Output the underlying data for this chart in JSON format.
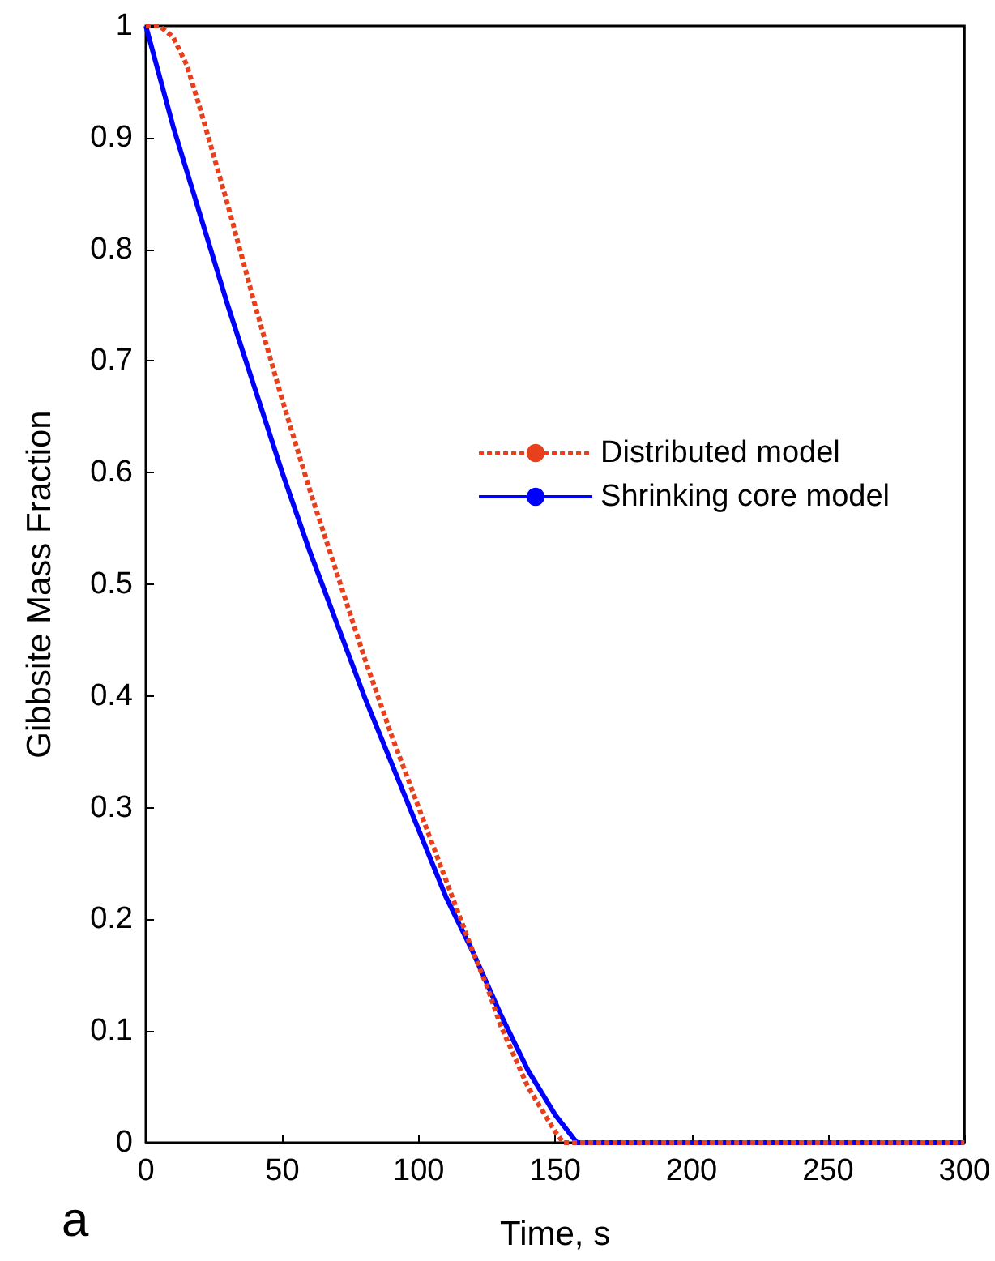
{
  "chart_data": {
    "type": "line",
    "xlabel": "Time, s",
    "ylabel": "Gibbsite Mass Fraction",
    "annotations": [
      "a"
    ],
    "xlim": [
      0,
      300
    ],
    "xticks": [
      0,
      50,
      100,
      150,
      200,
      250,
      300
    ],
    "ylim": [
      0,
      1
    ],
    "yticks": [
      0,
      0.1,
      0.2,
      0.3,
      0.4,
      0.5,
      0.6,
      0.7,
      0.8,
      0.9,
      1
    ],
    "grid": false,
    "legend": "right",
    "marker": "none",
    "series": [
      {
        "name": "Distributed model",
        "color": "#e8401c",
        "line_style": "dotted",
        "x": [
          0,
          5,
          10,
          15,
          20,
          30,
          40,
          50,
          60,
          70,
          80,
          90,
          100,
          110,
          120,
          125,
          130,
          140,
          150,
          153,
          200,
          250,
          300
        ],
        "values": [
          1,
          1,
          0.99,
          0.965,
          0.925,
          0.84,
          0.75,
          0.665,
          0.585,
          0.51,
          0.435,
          0.365,
          0.3,
          0.235,
          0.17,
          0.14,
          0.105,
          0.05,
          0.01,
          0,
          0,
          0,
          0
        ]
      },
      {
        "name": "Shrinking core model",
        "color": "#0000ff",
        "line_style": "solid",
        "x": [
          0,
          10,
          20,
          30,
          40,
          50,
          60,
          70,
          80,
          90,
          100,
          110,
          120,
          130,
          140,
          150,
          158,
          200,
          250,
          300
        ],
        "values": [
          1,
          0.91,
          0.83,
          0.75,
          0.675,
          0.6,
          0.53,
          0.465,
          0.4,
          0.34,
          0.28,
          0.22,
          0.17,
          0.115,
          0.065,
          0.025,
          0,
          0,
          0,
          0
        ]
      }
    ]
  }
}
